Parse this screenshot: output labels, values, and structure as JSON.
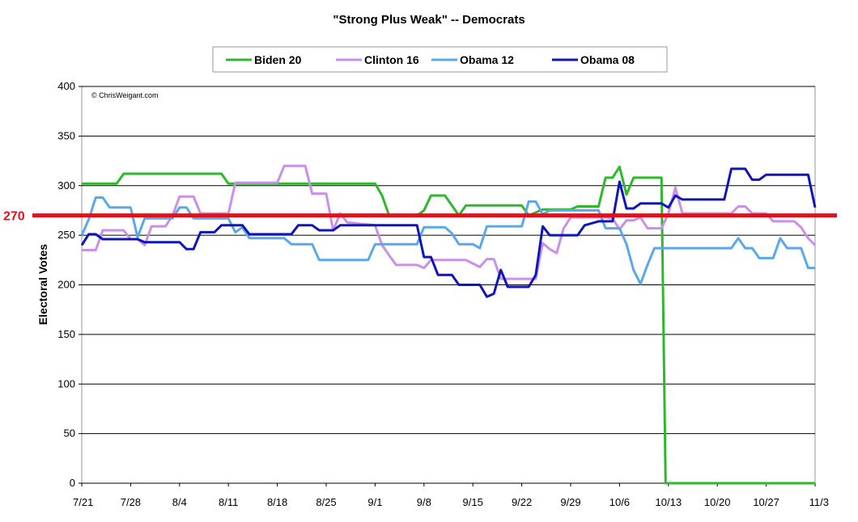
{
  "chart_data": {
    "type": "line",
    "title": "\"Strong Plus Weak\" -- Democrats",
    "ylabel": "Electoral Votes",
    "xlabel": "",
    "credit": "© ChrisWeigant.com",
    "ylim": [
      0,
      400
    ],
    "yticks": [
      0,
      50,
      100,
      150,
      200,
      250,
      300,
      350,
      400
    ],
    "grid": true,
    "legend_position": "top",
    "x_start": "7/21",
    "x_end": "11/3",
    "xticks": [
      {
        "label": "7/21",
        "day": 0
      },
      {
        "label": "7/28",
        "day": 7
      },
      {
        "label": "8/4",
        "day": 14
      },
      {
        "label": "8/11",
        "day": 21
      },
      {
        "label": "8/18",
        "day": 28
      },
      {
        "label": "8/25",
        "day": 35
      },
      {
        "label": "9/1",
        "day": 42
      },
      {
        "label": "9/8",
        "day": 49
      },
      {
        "label": "9/15",
        "day": 56
      },
      {
        "label": "9/22",
        "day": 63
      },
      {
        "label": "9/29",
        "day": 70
      },
      {
        "label": "10/6",
        "day": 77
      },
      {
        "label": "10/13",
        "day": 84
      },
      {
        "label": "10/20",
        "day": 91
      },
      {
        "label": "10/27",
        "day": 98
      },
      {
        "label": "11/3",
        "day": 105
      }
    ],
    "reference_line": {
      "label": "270",
      "value": 270,
      "color": "#d9141e"
    },
    "series": [
      {
        "name": "Biden 20",
        "color": "#2eb82e",
        "points": [
          [
            0,
            302
          ],
          [
            5,
            302
          ],
          [
            6,
            312
          ],
          [
            20,
            312
          ],
          [
            21,
            302
          ],
          [
            42,
            302
          ],
          [
            43,
            290
          ],
          [
            44,
            270
          ],
          [
            48,
            270
          ],
          [
            49,
            275
          ],
          [
            50,
            290
          ],
          [
            52,
            290
          ],
          [
            54,
            270
          ],
          [
            55,
            280
          ],
          [
            63,
            280
          ],
          [
            64,
            270
          ],
          [
            66,
            276
          ],
          [
            70,
            276
          ],
          [
            71,
            279
          ],
          [
            74,
            279
          ],
          [
            75,
            308
          ],
          [
            76,
            308
          ],
          [
            77,
            319
          ],
          [
            78,
            291
          ],
          [
            79,
            308
          ],
          [
            83,
            308
          ],
          [
            83.6,
            0
          ],
          [
            105,
            0
          ]
        ]
      },
      {
        "name": "Clinton 16",
        "color": "#c98fea",
        "points": [
          [
            0,
            235
          ],
          [
            2,
            235
          ],
          [
            3,
            255
          ],
          [
            6,
            255
          ],
          [
            7,
            246
          ],
          [
            8,
            246
          ],
          [
            9,
            240
          ],
          [
            10,
            259
          ],
          [
            12,
            259
          ],
          [
            13,
            270
          ],
          [
            14,
            289
          ],
          [
            16,
            289
          ],
          [
            17,
            272
          ],
          [
            20,
            272
          ],
          [
            21,
            272
          ],
          [
            22,
            303
          ],
          [
            28,
            303
          ],
          [
            29,
            320
          ],
          [
            32,
            320
          ],
          [
            33,
            292
          ],
          [
            35,
            292
          ],
          [
            36,
            255
          ],
          [
            37,
            272
          ],
          [
            38,
            263
          ],
          [
            42,
            260
          ],
          [
            43,
            240
          ],
          [
            44,
            230
          ],
          [
            45,
            220
          ],
          [
            48,
            220
          ],
          [
            49,
            217
          ],
          [
            50,
            225
          ],
          [
            55,
            225
          ],
          [
            57,
            218
          ],
          [
            58,
            226
          ],
          [
            59,
            226
          ],
          [
            60,
            206
          ],
          [
            65,
            206
          ],
          [
            66,
            242
          ],
          [
            67,
            236
          ],
          [
            68,
            232
          ],
          [
            69,
            257
          ],
          [
            70,
            268
          ],
          [
            75,
            268
          ],
          [
            76,
            267
          ],
          [
            77,
            256
          ],
          [
            78,
            265
          ],
          [
            79,
            265
          ],
          [
            80,
            268
          ],
          [
            81,
            257
          ],
          [
            83,
            257
          ],
          [
            84,
            272
          ],
          [
            85,
            298
          ],
          [
            86,
            272
          ],
          [
            93,
            272
          ],
          [
            94,
            279
          ],
          [
            95,
            279
          ],
          [
            96,
            272
          ],
          [
            98,
            272
          ],
          [
            99,
            264
          ],
          [
            102,
            264
          ],
          [
            103,
            258
          ],
          [
            104,
            247
          ],
          [
            105,
            240
          ]
        ]
      },
      {
        "name": "Obama 12",
        "color": "#5aa8ec",
        "points": [
          [
            0,
            250
          ],
          [
            1,
            266
          ],
          [
            2,
            288
          ],
          [
            3,
            288
          ],
          [
            4,
            278
          ],
          [
            7,
            278
          ],
          [
            8,
            248
          ],
          [
            9,
            267
          ],
          [
            13,
            267
          ],
          [
            14,
            278
          ],
          [
            15,
            278
          ],
          [
            16,
            267
          ],
          [
            21,
            267
          ],
          [
            22,
            253
          ],
          [
            23,
            258
          ],
          [
            24,
            247
          ],
          [
            29,
            247
          ],
          [
            30,
            241
          ],
          [
            33,
            241
          ],
          [
            34,
            225
          ],
          [
            41,
            225
          ],
          [
            42,
            241
          ],
          [
            48,
            241
          ],
          [
            49,
            258
          ],
          [
            52,
            258
          ],
          [
            53,
            252
          ],
          [
            54,
            241
          ],
          [
            56,
            241
          ],
          [
            57,
            237
          ],
          [
            58,
            259
          ],
          [
            63,
            259
          ],
          [
            64,
            284
          ],
          [
            65,
            284
          ],
          [
            66,
            271
          ],
          [
            67,
            275
          ],
          [
            74,
            275
          ],
          [
            75,
            257
          ],
          [
            77,
            257
          ],
          [
            78,
            241
          ],
          [
            79,
            215
          ],
          [
            80,
            201
          ],
          [
            81,
            220
          ],
          [
            82,
            237
          ],
          [
            93,
            237
          ],
          [
            94,
            247
          ],
          [
            95,
            237
          ],
          [
            96,
            237
          ],
          [
            97,
            227
          ],
          [
            99,
            227
          ],
          [
            100,
            247
          ],
          [
            101,
            237
          ],
          [
            103,
            237
          ],
          [
            104,
            217
          ],
          [
            105,
            217
          ]
        ]
      },
      {
        "name": "Obama 08",
        "color": "#0e16b8",
        "points": [
          [
            0,
            240
          ],
          [
            1,
            251
          ],
          [
            2,
            251
          ],
          [
            3,
            246
          ],
          [
            8,
            246
          ],
          [
            9,
            243
          ],
          [
            14,
            243
          ],
          [
            15,
            236
          ],
          [
            16,
            236
          ],
          [
            17,
            253
          ],
          [
            19,
            253
          ],
          [
            20,
            260
          ],
          [
            23,
            260
          ],
          [
            24,
            251
          ],
          [
            30,
            251
          ],
          [
            31,
            260
          ],
          [
            33,
            260
          ],
          [
            34,
            255
          ],
          [
            36,
            255
          ],
          [
            37,
            260
          ],
          [
            48,
            260
          ],
          [
            49,
            228
          ],
          [
            50,
            228
          ],
          [
            51,
            210
          ],
          [
            53,
            210
          ],
          [
            54,
            200
          ],
          [
            57,
            200
          ],
          [
            58,
            188
          ],
          [
            59,
            191
          ],
          [
            60,
            215
          ],
          [
            61,
            198
          ],
          [
            64,
            198
          ],
          [
            65,
            210
          ],
          [
            66,
            259
          ],
          [
            67,
            250
          ],
          [
            70,
            250
          ],
          [
            71,
            250
          ],
          [
            72,
            260
          ],
          [
            74,
            264
          ],
          [
            76,
            264
          ],
          [
            77,
            304
          ],
          [
            78,
            277
          ],
          [
            79,
            277
          ],
          [
            80,
            282
          ],
          [
            83,
            282
          ],
          [
            84,
            278
          ],
          [
            85,
            290
          ],
          [
            86,
            286
          ],
          [
            92,
            286
          ],
          [
            93,
            317
          ],
          [
            95,
            317
          ],
          [
            96,
            306
          ],
          [
            97,
            306
          ],
          [
            98,
            311
          ],
          [
            103,
            311
          ],
          [
            104,
            311
          ],
          [
            105,
            278
          ]
        ]
      }
    ]
  }
}
